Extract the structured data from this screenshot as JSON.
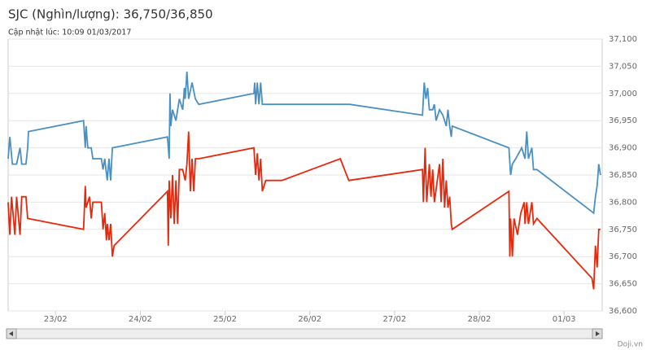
{
  "chart_data": {
    "type": "line",
    "title": "SJC (Nghìn/lượng): 36,750/36,850",
    "subtitle": "Cập nhật lúc: 10:09 01/03/2017",
    "credit": "Doji.vn",
    "xlim": [
      53.44,
      60.45
    ],
    "xticks": [
      {
        "value": 54,
        "label": "23/02"
      },
      {
        "value": 55,
        "label": "24/02"
      },
      {
        "value": 56,
        "label": "25/02"
      },
      {
        "value": 57,
        "label": "26/02"
      },
      {
        "value": 58,
        "label": "27/02"
      },
      {
        "value": 59,
        "label": "28/02"
      },
      {
        "value": 60,
        "label": "01/03"
      }
    ],
    "ylim": [
      36600,
      37100
    ],
    "yticks": [
      {
        "value": 36600,
        "label": "36,600"
      },
      {
        "value": 36650,
        "label": "36,650"
      },
      {
        "value": 36700,
        "label": "36,700"
      },
      {
        "value": 36750,
        "label": "36,750"
      },
      {
        "value": 36800,
        "label": "36,800"
      },
      {
        "value": 36850,
        "label": "36,850"
      },
      {
        "value": 36900,
        "label": "36,900"
      },
      {
        "value": 36950,
        "label": "36,950"
      },
      {
        "value": 37000,
        "label": "37,000"
      },
      {
        "value": 37050,
        "label": "37,050"
      },
      {
        "value": 37100,
        "label": "37,100"
      }
    ],
    "grid": true,
    "series": [
      {
        "color": "#4a90c2",
        "x": [
          53.44,
          53.46,
          53.49,
          53.54,
          53.58,
          53.6,
          53.65,
          53.67,
          53.68,
          54.33,
          54.35,
          54.36,
          54.38,
          54.42,
          54.44,
          54.48,
          54.54,
          54.56,
          54.58,
          54.61,
          54.63,
          54.65,
          54.67,
          55.32,
          55.34,
          55.35,
          55.36,
          55.38,
          55.42,
          55.44,
          55.46,
          55.5,
          55.52,
          55.53,
          55.55,
          55.57,
          55.61,
          55.65,
          55.69,
          56.34,
          56.35,
          56.36,
          56.38,
          56.4,
          56.42,
          56.44,
          57.47,
          58.33,
          58.35,
          58.37,
          58.39,
          58.41,
          58.45,
          58.47,
          58.49,
          58.53,
          58.57,
          58.61,
          58.63,
          58.65,
          58.67,
          58.68,
          59.35,
          59.37,
          59.39,
          59.43,
          59.5,
          59.54,
          59.56,
          59.58,
          59.62,
          59.64,
          59.68,
          60.35,
          60.37,
          60.39,
          60.41,
          60.43
        ],
        "values": [
          36880,
          36920,
          36870,
          36870,
          36900,
          36870,
          36870,
          36900,
          36930,
          36950,
          36900,
          36940,
          36900,
          36900,
          36880,
          36880,
          36880,
          36860,
          36880,
          36840,
          36880,
          36840,
          36900,
          36920,
          36880,
          37000,
          36940,
          36970,
          36950,
          36970,
          36990,
          36970,
          37010,
          36990,
          37040,
          36990,
          37020,
          36990,
          36980,
          37000,
          37020,
          36980,
          37020,
          36980,
          37020,
          36980,
          36980,
          36960,
          37020,
          36990,
          37010,
          36970,
          36970,
          36980,
          36950,
          36970,
          36960,
          36940,
          36970,
          36940,
          36920,
          36940,
          36900,
          36850,
          36870,
          36880,
          36900,
          36880,
          36930,
          36880,
          36900,
          36860,
          36860,
          36780,
          36810,
          36830,
          36870,
          36850
        ]
      },
      {
        "color": "#e8280c",
        "x": [
          53.44,
          53.46,
          53.48,
          53.52,
          53.54,
          53.58,
          53.6,
          53.65,
          53.67,
          54.33,
          54.35,
          54.36,
          54.4,
          54.42,
          54.44,
          54.54,
          54.56,
          54.58,
          54.6,
          54.61,
          54.63,
          54.65,
          54.67,
          54.69,
          55.32,
          55.33,
          55.34,
          55.36,
          55.38,
          55.4,
          55.42,
          55.44,
          55.46,
          55.5,
          55.53,
          55.55,
          55.57,
          55.59,
          55.61,
          55.63,
          55.65,
          55.69,
          56.34,
          56.36,
          56.38,
          56.4,
          56.42,
          56.44,
          56.48,
          56.67,
          57.36,
          57.46,
          58.33,
          58.34,
          58.36,
          58.38,
          58.41,
          58.43,
          58.45,
          58.47,
          58.53,
          58.55,
          58.57,
          58.59,
          58.61,
          58.63,
          58.65,
          58.67,
          58.68,
          59.35,
          59.36,
          59.37,
          59.39,
          59.41,
          59.45,
          59.49,
          59.53,
          59.54,
          59.56,
          59.58,
          59.62,
          59.64,
          59.68,
          60.33,
          60.35,
          60.37,
          60.39,
          60.41,
          60.43
        ],
        "values": [
          36800,
          36740,
          36810,
          36740,
          36810,
          36740,
          36810,
          36810,
          36770,
          36750,
          36830,
          36790,
          36810,
          36770,
          36800,
          36800,
          36750,
          36780,
          36730,
          36760,
          36730,
          36760,
          36700,
          36720,
          36820,
          36720,
          36840,
          36770,
          36850,
          36760,
          36840,
          36760,
          36860,
          36860,
          36840,
          36870,
          36930,
          36820,
          36880,
          36820,
          36880,
          36880,
          36900,
          36850,
          36890,
          36840,
          36880,
          36820,
          36840,
          36840,
          36880,
          36840,
          36860,
          36800,
          36900,
          36800,
          36870,
          36810,
          36860,
          36800,
          36870,
          36800,
          36880,
          36790,
          36840,
          36790,
          36810,
          36760,
          36750,
          36820,
          36700,
          36770,
          36700,
          36770,
          36740,
          36780,
          36800,
          36760,
          36800,
          36760,
          36800,
          36760,
          36770,
          36660,
          36640,
          36720,
          36680,
          36750,
          36750
        ]
      }
    ]
  }
}
